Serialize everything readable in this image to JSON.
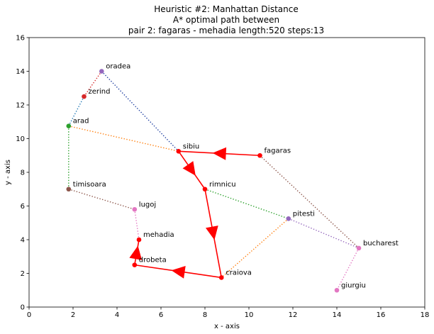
{
  "chart_data": {
    "type": "scatter",
    "title": [
      "Heuristic #2: Manhattan Distance",
      "A* optimal path between",
      "pair 2: fagaras - mehadia length:520 steps:13"
    ],
    "xlabel": "x - axis",
    "ylabel": "y - axis",
    "xlim": [
      0,
      18
    ],
    "ylim": [
      0,
      16
    ],
    "xticks": [
      0,
      2,
      4,
      6,
      8,
      10,
      12,
      14,
      16,
      18
    ],
    "yticks": [
      0,
      2,
      4,
      6,
      8,
      10,
      12,
      14,
      16
    ],
    "grid": false,
    "cities": [
      {
        "name": "oradea",
        "x": 3.3,
        "y": 14.0,
        "color": "#9467bd"
      },
      {
        "name": "zerind",
        "x": 2.5,
        "y": 12.5,
        "color": "#d62728"
      },
      {
        "name": "arad",
        "x": 1.8,
        "y": 10.75,
        "color": "#2ca02c"
      },
      {
        "name": "sibiu",
        "x": 6.8,
        "y": 9.25,
        "color": "#ff0000"
      },
      {
        "name": "fagaras",
        "x": 10.5,
        "y": 9.0,
        "color": "#ff0000"
      },
      {
        "name": "timisoara",
        "x": 1.8,
        "y": 7.0,
        "color": "#8c564b"
      },
      {
        "name": "rimnicu",
        "x": 8.0,
        "y": 7.0,
        "color": "#ff0000"
      },
      {
        "name": "lugoj",
        "x": 4.8,
        "y": 5.8,
        "color": "#e377c2"
      },
      {
        "name": "pitesti",
        "x": 11.8,
        "y": 5.25,
        "color": "#9467bd"
      },
      {
        "name": "mehadia",
        "x": 5.0,
        "y": 4.0,
        "color": "#ff0000"
      },
      {
        "name": "bucharest",
        "x": 15.0,
        "y": 3.5,
        "color": "#e377c2"
      },
      {
        "name": "drobeta",
        "x": 4.8,
        "y": 2.5,
        "color": "#ff0000"
      },
      {
        "name": "craiova",
        "x": 8.75,
        "y": 1.75,
        "color": "#ff0000"
      },
      {
        "name": "giurgiu",
        "x": 14.0,
        "y": 1.0,
        "color": "#e377c2"
      }
    ],
    "edges": [
      {
        "from": "oradea",
        "to": "zerind",
        "color": "#d62728"
      },
      {
        "from": "oradea",
        "to": "sibiu",
        "color": "#1f3fa0"
      },
      {
        "from": "zerind",
        "to": "arad",
        "color": "#1f77b4"
      },
      {
        "from": "arad",
        "to": "sibiu",
        "color": "#ff7f0e"
      },
      {
        "from": "arad",
        "to": "timisoara",
        "color": "#2ca02c"
      },
      {
        "from": "timisoara",
        "to": "lugoj",
        "color": "#8c564b"
      },
      {
        "from": "lugoj",
        "to": "mehadia",
        "color": "#e377c2"
      },
      {
        "from": "rimnicu",
        "to": "pitesti",
        "color": "#2ca02c"
      },
      {
        "from": "pitesti",
        "to": "craiova",
        "color": "#ff7f0e"
      },
      {
        "from": "pitesti",
        "to": "bucharest",
        "color": "#9467bd"
      },
      {
        "from": "fagaras",
        "to": "bucharest",
        "color": "#8c564b"
      },
      {
        "from": "bucharest",
        "to": "giurgiu",
        "color": "#e377c2"
      }
    ],
    "path": [
      "fagaras",
      "sibiu",
      "rimnicu",
      "craiova",
      "drobeta",
      "mehadia"
    ],
    "path_color": "#ff0000"
  }
}
